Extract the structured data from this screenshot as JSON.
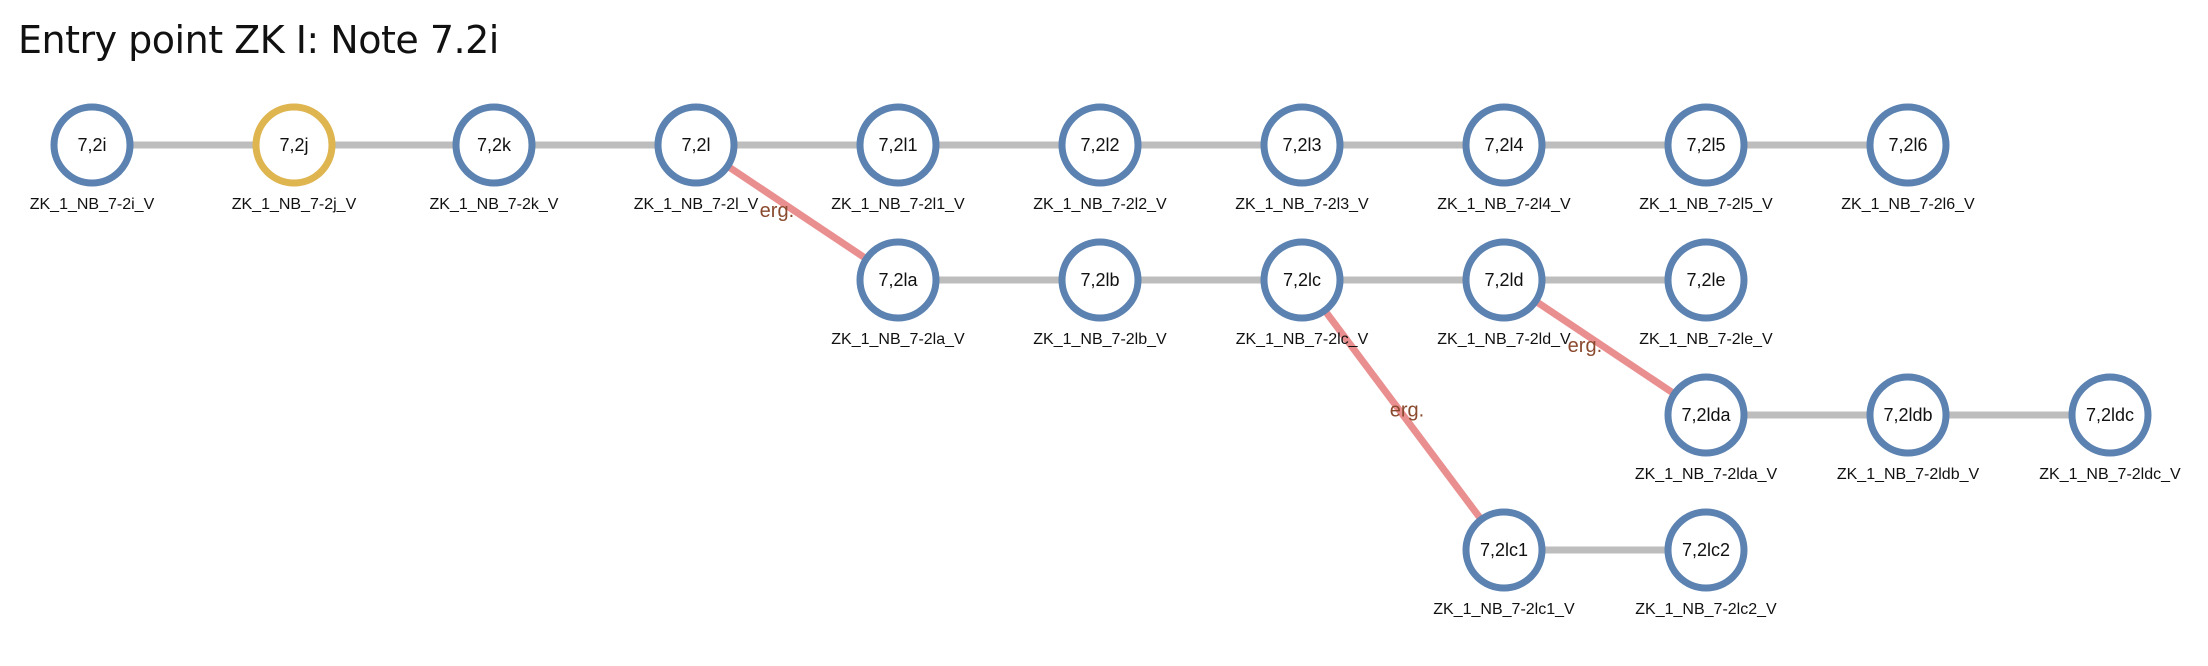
{
  "title": "Entry point ZK I: Note 7.2i",
  "colors": {
    "node_default": "#5b82b1",
    "node_highlight": "#deb54f",
    "edge_default": "#bdbdbd",
    "edge_derived": "#ea8f8f",
    "edge_label": "#8a4a2e"
  },
  "nodes": [
    {
      "id": "7,2i",
      "caption": "ZK_1_NB_7-2i_V",
      "highlight": false
    },
    {
      "id": "7,2j",
      "caption": "ZK_1_NB_7-2j_V",
      "highlight": true
    },
    {
      "id": "7,2k",
      "caption": "ZK_1_NB_7-2k_V",
      "highlight": false
    },
    {
      "id": "7,2l",
      "caption": "ZK_1_NB_7-2l_V",
      "highlight": false
    },
    {
      "id": "7,2l1",
      "caption": "ZK_1_NB_7-2l1_V",
      "highlight": false
    },
    {
      "id": "7,2l2",
      "caption": "ZK_1_NB_7-2l2_V",
      "highlight": false
    },
    {
      "id": "7,2l3",
      "caption": "ZK_1_NB_7-2l3_V",
      "highlight": false
    },
    {
      "id": "7,2l4",
      "caption": "ZK_1_NB_7-2l4_V",
      "highlight": false
    },
    {
      "id": "7,2l5",
      "caption": "ZK_1_NB_7-2l5_V",
      "highlight": false
    },
    {
      "id": "7,2l6",
      "caption": "ZK_1_NB_7-2l6_V",
      "highlight": false
    },
    {
      "id": "7,2la",
      "caption": "ZK_1_NB_7-2la_V",
      "highlight": false
    },
    {
      "id": "7,2lb",
      "caption": "ZK_1_NB_7-2lb_V",
      "highlight": false
    },
    {
      "id": "7,2lc",
      "caption": "ZK_1_NB_7-2lc_V",
      "highlight": false
    },
    {
      "id": "7,2ld",
      "caption": "ZK_1_NB_7-2ld_V",
      "highlight": false
    },
    {
      "id": "7,2le",
      "caption": "ZK_1_NB_7-2le_V",
      "highlight": false
    },
    {
      "id": "7,2lda",
      "caption": "ZK_1_NB_7-2lda_V",
      "highlight": false
    },
    {
      "id": "7,2ldb",
      "caption": "ZK_1_NB_7-2ldb_V",
      "highlight": false
    },
    {
      "id": "7,2ldc",
      "caption": "ZK_1_NB_7-2ldc_V",
      "highlight": false
    },
    {
      "id": "7,2lc1",
      "caption": "ZK_1_NB_7-2lc1_V",
      "highlight": false
    },
    {
      "id": "7,2lc2",
      "caption": "ZK_1_NB_7-2lc2_V",
      "highlight": false
    }
  ],
  "edges": [
    {
      "from": "7,2i",
      "to": "7,2j",
      "kind": "sequence",
      "label": ""
    },
    {
      "from": "7,2j",
      "to": "7,2k",
      "kind": "sequence",
      "label": ""
    },
    {
      "from": "7,2k",
      "to": "7,2l",
      "kind": "sequence",
      "label": ""
    },
    {
      "from": "7,2l",
      "to": "7,2l1",
      "kind": "sequence",
      "label": ""
    },
    {
      "from": "7,2l1",
      "to": "7,2l2",
      "kind": "sequence",
      "label": ""
    },
    {
      "from": "7,2l2",
      "to": "7,2l3",
      "kind": "sequence",
      "label": ""
    },
    {
      "from": "7,2l3",
      "to": "7,2l4",
      "kind": "sequence",
      "label": ""
    },
    {
      "from": "7,2l4",
      "to": "7,2l5",
      "kind": "sequence",
      "label": ""
    },
    {
      "from": "7,2l5",
      "to": "7,2l6",
      "kind": "sequence",
      "label": ""
    },
    {
      "from": "7,2l",
      "to": "7,2la",
      "kind": "derived",
      "label": "erg."
    },
    {
      "from": "7,2la",
      "to": "7,2lb",
      "kind": "sequence",
      "label": ""
    },
    {
      "from": "7,2lb",
      "to": "7,2lc",
      "kind": "sequence",
      "label": ""
    },
    {
      "from": "7,2lc",
      "to": "7,2ld",
      "kind": "sequence",
      "label": ""
    },
    {
      "from": "7,2ld",
      "to": "7,2le",
      "kind": "sequence",
      "label": ""
    },
    {
      "from": "7,2ld",
      "to": "7,2lda",
      "kind": "derived",
      "label": "erg."
    },
    {
      "from": "7,2lda",
      "to": "7,2ldb",
      "kind": "sequence",
      "label": ""
    },
    {
      "from": "7,2ldb",
      "to": "7,2ldc",
      "kind": "sequence",
      "label": ""
    },
    {
      "from": "7,2lc",
      "to": "7,2lc1",
      "kind": "derived",
      "label": "erg."
    },
    {
      "from": "7,2lc1",
      "to": "7,2lc2",
      "kind": "sequence",
      "label": ""
    }
  ]
}
